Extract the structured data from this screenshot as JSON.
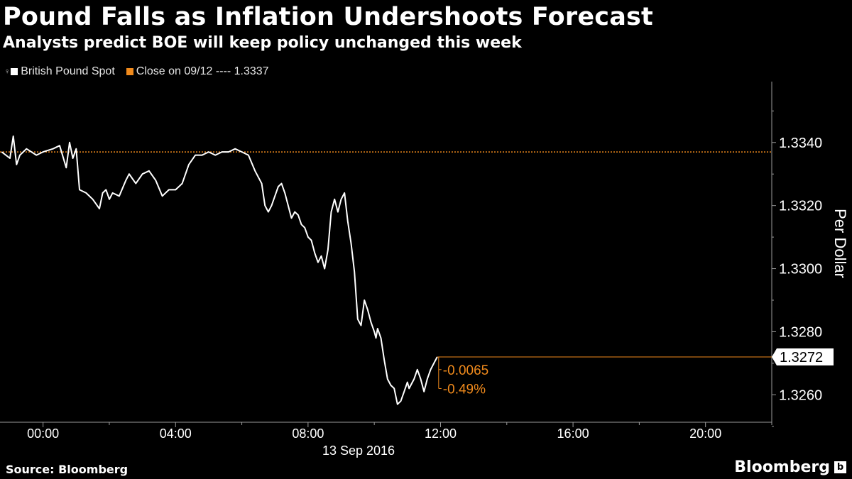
{
  "title": "Pound Falls as Inflation Undershoots Forecast",
  "subtitle": "Analysts predict BOE will keep policy unchanged this week",
  "legend": {
    "series_label": "British Pound Spot",
    "close_label": "Close on 09/12 ---- 1.3337"
  },
  "colors": {
    "background": "#000000",
    "series": "#ffffff",
    "accent": "#f08a1c",
    "axis": "#9a9a9a"
  },
  "footer": {
    "source": "Source: Bloomberg",
    "brand": "Bloomberg",
    "brand_icon": "b-icon"
  },
  "chart_data": {
    "type": "line",
    "title": "Pound Falls as Inflation Undershoots Forecast",
    "subtitle": "Analysts predict BOE will keep policy unchanged this week",
    "xlabel": "13 Sep 2016",
    "ylabel": "Per Dollar",
    "x_unit": "hours (13 Sep 2016)",
    "xlim": [
      -1.3,
      22.0
    ],
    "ylim": [
      1.32513,
      1.33593
    ],
    "x_ticks": [
      0,
      4,
      8,
      12,
      16,
      20
    ],
    "x_tick_labels": [
      "00:00",
      "04:00",
      "08:00",
      "12:00",
      "16:00",
      "20:00"
    ],
    "y_ticks": [
      1.326,
      1.328,
      1.33,
      1.332,
      1.334
    ],
    "y_tick_labels": [
      "1.3260",
      "1.3280",
      "1.3300",
      "1.3320",
      "1.3340"
    ],
    "grid": false,
    "legend_position": "top-left",
    "reference_line": {
      "name": "Close on 09/12",
      "value": 1.3337
    },
    "last_value": {
      "value": 1.3272,
      "label": "1.3272",
      "change": "-0.0065",
      "change_pct": "-0.49%"
    },
    "series": [
      {
        "name": "British Pound Spot",
        "x": [
          -1.25,
          -1.0,
          -0.9,
          -0.8,
          -0.7,
          -0.5,
          -0.2,
          0.0,
          0.3,
          0.5,
          0.7,
          0.8,
          0.9,
          1.0,
          1.1,
          1.3,
          1.5,
          1.7,
          1.8,
          1.9,
          2.0,
          2.1,
          2.3,
          2.5,
          2.6,
          2.8,
          3.0,
          3.2,
          3.4,
          3.6,
          3.8,
          4.0,
          4.2,
          4.4,
          4.6,
          4.8,
          5.0,
          5.2,
          5.4,
          5.6,
          5.8,
          6.0,
          6.2,
          6.4,
          6.6,
          6.7,
          6.8,
          6.9,
          7.0,
          7.1,
          7.2,
          7.3,
          7.4,
          7.5,
          7.6,
          7.7,
          7.8,
          7.9,
          8.0,
          8.1,
          8.2,
          8.3,
          8.4,
          8.5,
          8.6,
          8.7,
          8.8,
          8.9,
          9.0,
          9.1,
          9.2,
          9.3,
          9.4,
          9.5,
          9.6,
          9.7,
          9.8,
          9.9,
          10.0,
          10.05,
          10.1,
          10.2,
          10.3,
          10.4,
          10.5,
          10.6,
          10.7,
          10.8,
          10.9,
          11.0,
          11.05,
          11.1,
          11.2,
          11.3,
          11.4,
          11.5,
          11.6,
          11.7,
          11.8,
          11.9
        ],
        "y": [
          1.3337,
          1.3335,
          1.3342,
          1.3333,
          1.3336,
          1.3338,
          1.3336,
          1.3337,
          1.3338,
          1.3339,
          1.3332,
          1.334,
          1.3335,
          1.3338,
          1.3325,
          1.3324,
          1.3322,
          1.3319,
          1.3324,
          1.3325,
          1.3322,
          1.3324,
          1.3323,
          1.3328,
          1.333,
          1.3327,
          1.333,
          1.3331,
          1.3328,
          1.3323,
          1.3325,
          1.3325,
          1.3327,
          1.3333,
          1.3336,
          1.3336,
          1.3337,
          1.3336,
          1.3337,
          1.3337,
          1.3338,
          1.3337,
          1.3336,
          1.3331,
          1.3327,
          1.332,
          1.3318,
          1.332,
          1.3323,
          1.3326,
          1.3327,
          1.3324,
          1.332,
          1.3316,
          1.3318,
          1.3317,
          1.3314,
          1.3313,
          1.331,
          1.3309,
          1.3305,
          1.3302,
          1.3304,
          1.33,
          1.3306,
          1.3318,
          1.3322,
          1.3318,
          1.3322,
          1.3324,
          1.3315,
          1.3308,
          1.3299,
          1.3284,
          1.3282,
          1.329,
          1.3287,
          1.3283,
          1.328,
          1.3278,
          1.3281,
          1.3278,
          1.3271,
          1.3265,
          1.3263,
          1.3262,
          1.3257,
          1.3258,
          1.3261,
          1.3264,
          1.3262,
          1.3263,
          1.3265,
          1.3268,
          1.3265,
          1.3261,
          1.3265,
          1.3268,
          1.327,
          1.3272
        ]
      }
    ]
  }
}
